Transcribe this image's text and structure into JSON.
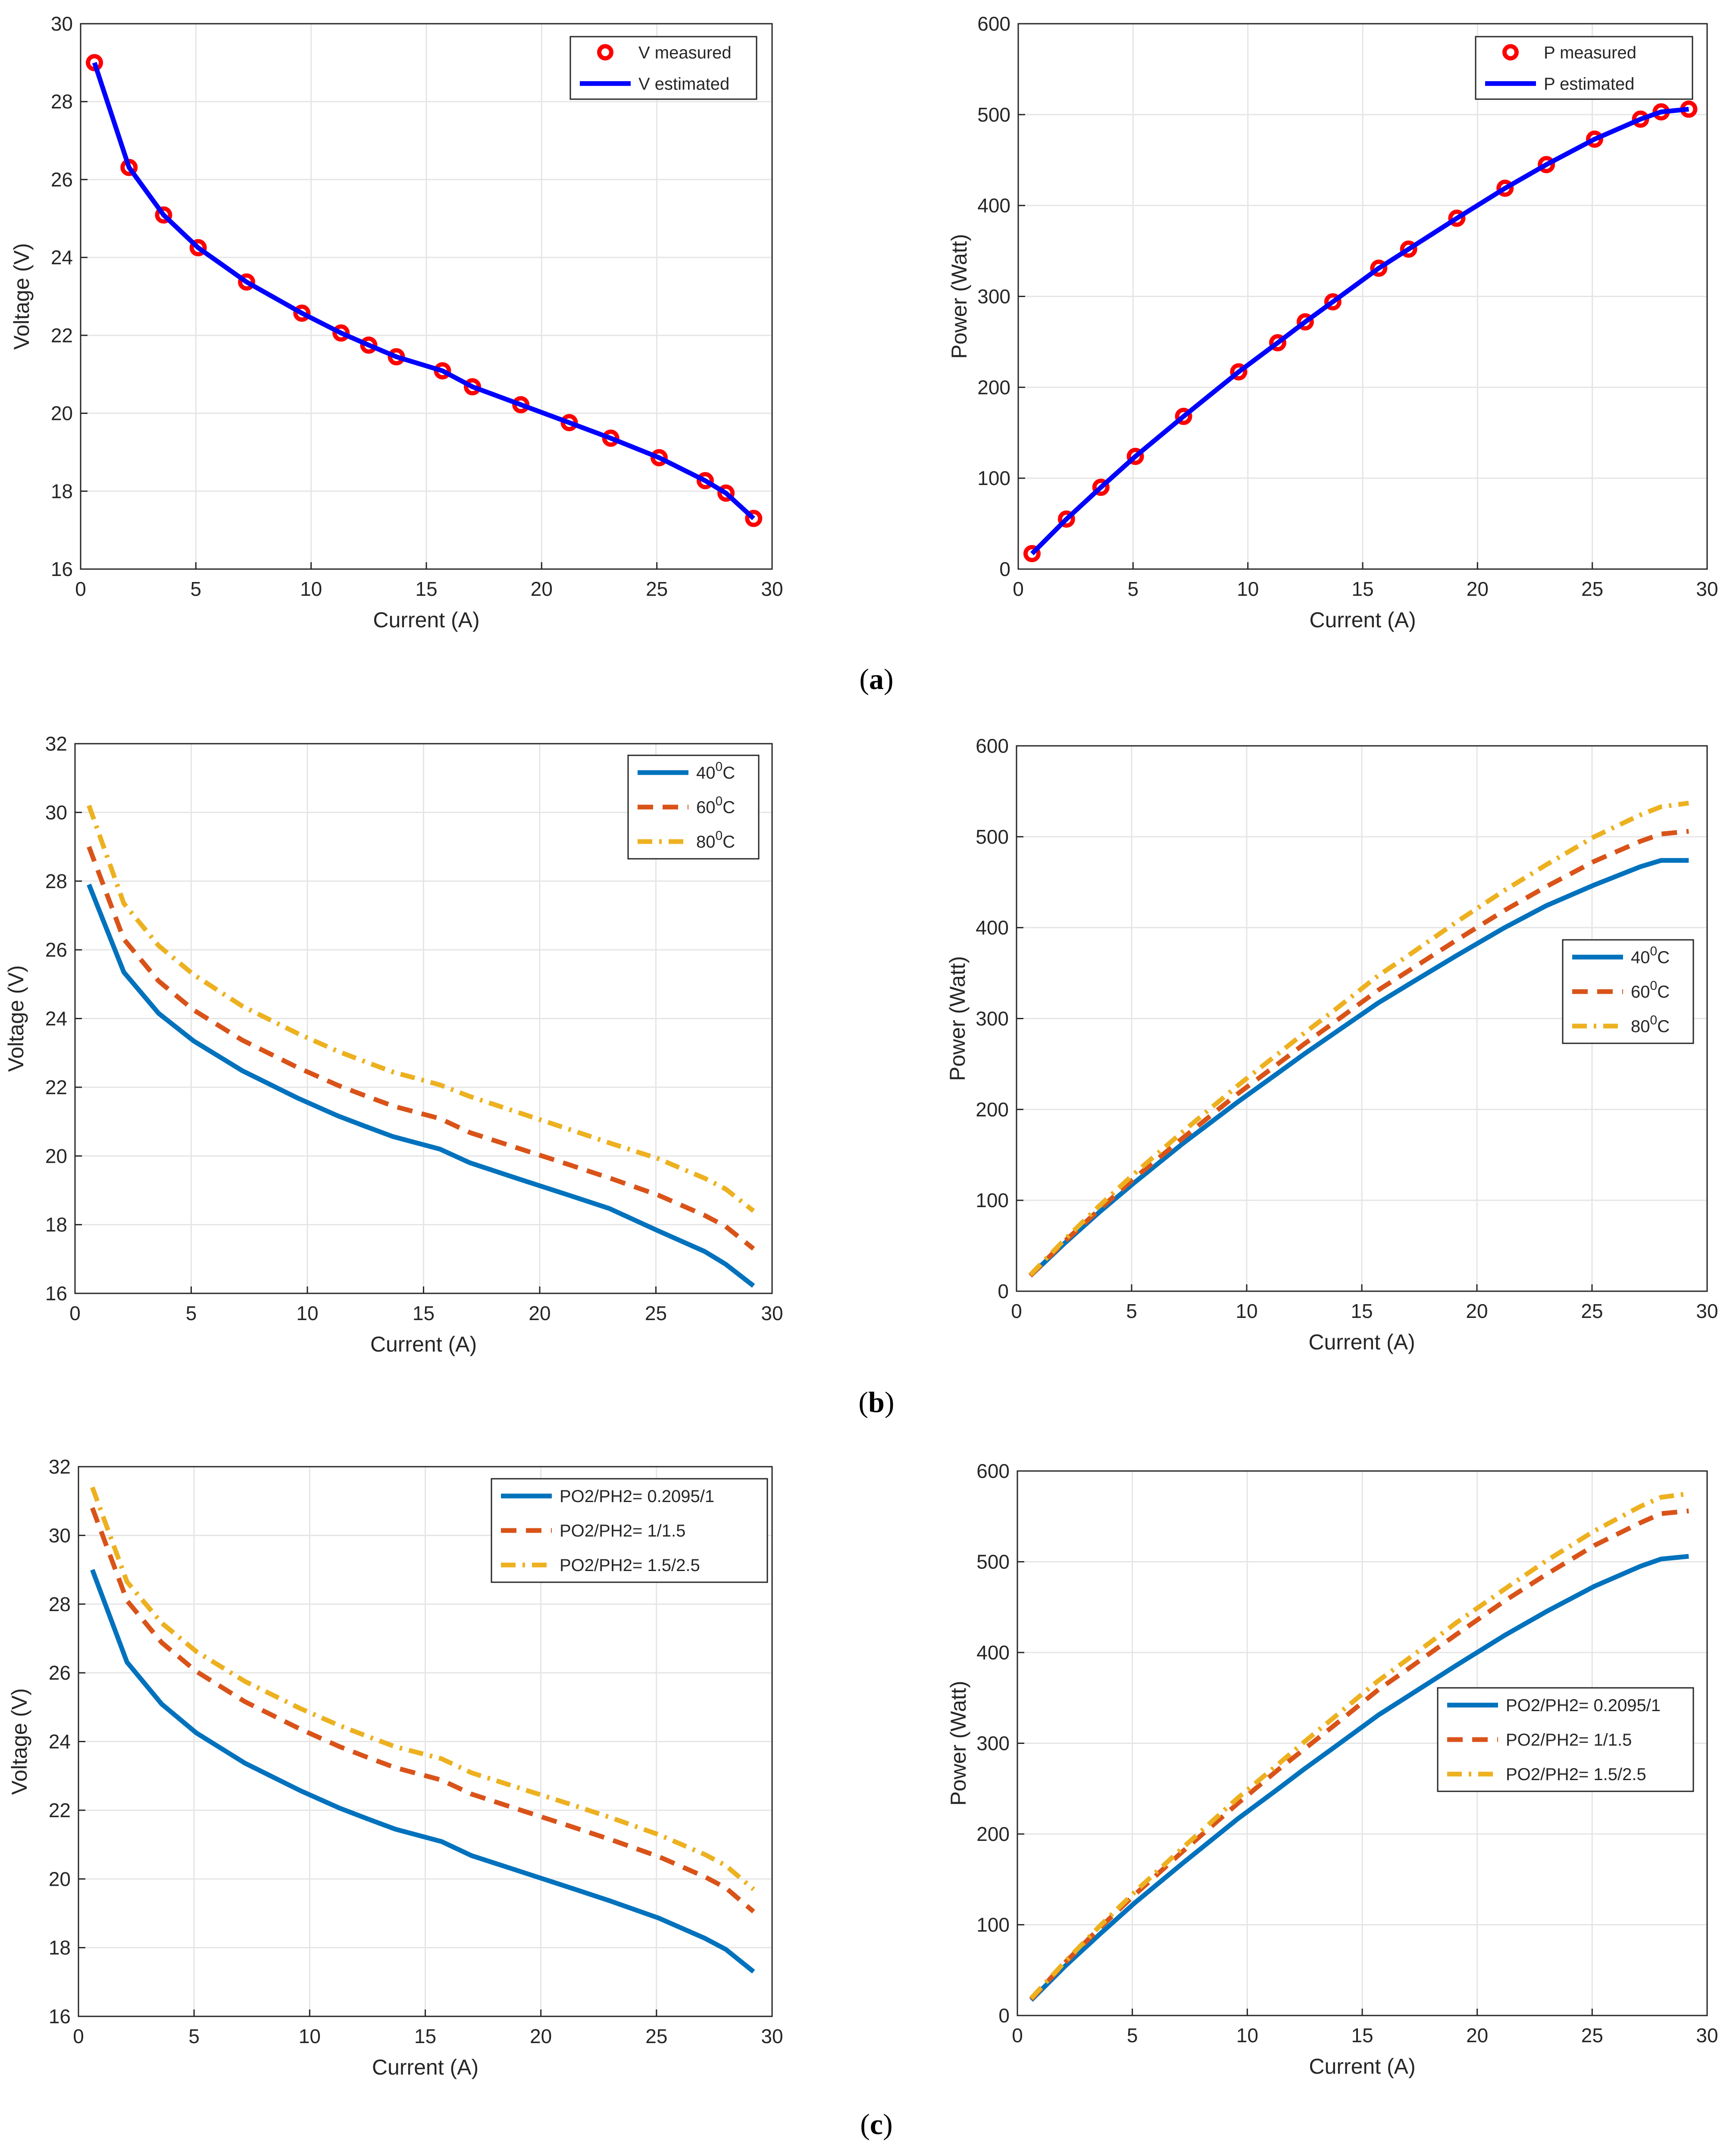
{
  "captions": [
    "a",
    "b",
    "c"
  ],
  "colors": {
    "measured_marker": "#ff0000",
    "estimated_line": "#0000ff",
    "series1": "#0072bd",
    "series2": "#d95319",
    "series3": "#edb120",
    "grid": "#e5e5e5",
    "axis": "#262626"
  },
  "chart_data": [
    {
      "id": "a-voltage",
      "type": "line",
      "xlabel": "Current (A)",
      "ylabel": "Voltage (V)",
      "xlim": [
        0,
        30
      ],
      "ylim": [
        16,
        30
      ],
      "xticks": [
        "0",
        "5",
        "10",
        "15",
        "20",
        "25",
        "30"
      ],
      "yticks": [
        "16",
        "18",
        "20",
        "22",
        "24",
        "26",
        "28",
        "30"
      ],
      "legend_position": "top-right",
      "grid": true,
      "x": [
        0.6,
        2.1,
        3.6,
        5.1,
        7.2,
        9.6,
        11.3,
        12.5,
        13.7,
        15.7,
        17.0,
        19.1,
        21.2,
        23.0,
        25.1,
        27.1,
        28.0,
        29.2
      ],
      "series": [
        {
          "name": "V measured",
          "style": "marker",
          "color": "#ff0000",
          "values": [
            29.0,
            26.31,
            25.09,
            24.25,
            23.37,
            22.57,
            22.06,
            21.75,
            21.45,
            21.09,
            20.68,
            20.22,
            19.76,
            19.36,
            18.86,
            18.27,
            17.95,
            17.3
          ]
        },
        {
          "name": "V estimated",
          "style": "solid",
          "color": "#0000ff",
          "values": [
            29.0,
            26.31,
            25.09,
            24.25,
            23.37,
            22.57,
            22.06,
            21.75,
            21.45,
            21.09,
            20.68,
            20.22,
            19.76,
            19.36,
            18.86,
            18.27,
            17.95,
            17.3
          ]
        }
      ]
    },
    {
      "id": "a-power",
      "type": "line",
      "xlabel": "Current (A)",
      "ylabel": "Power (Watt)",
      "xlim": [
        0,
        30
      ],
      "ylim": [
        0,
        600
      ],
      "xticks": [
        "0",
        "5",
        "10",
        "15",
        "20",
        "25",
        "30"
      ],
      "yticks": [
        "0",
        "100",
        "200",
        "300",
        "400",
        "500",
        "600"
      ],
      "legend_position": "top-right",
      "grid": true,
      "x": [
        0.6,
        2.1,
        3.6,
        5.1,
        7.2,
        9.6,
        11.3,
        12.5,
        13.7,
        15.7,
        17.0,
        19.1,
        21.2,
        23.0,
        25.1,
        27.1,
        28.0,
        29.2
      ],
      "series": [
        {
          "name": "P measured",
          "style": "marker",
          "color": "#ff0000",
          "values": [
            17,
            55,
            90,
            124,
            168,
            217,
            249,
            272,
            294,
            331,
            352,
            386,
            419,
            445,
            473,
            495,
            503,
            506
          ]
        },
        {
          "name": "P estimated",
          "style": "solid",
          "color": "#0000ff",
          "values": [
            17,
            55,
            90,
            124,
            168,
            217,
            249,
            272,
            294,
            331,
            352,
            386,
            419,
            445,
            473,
            495,
            503,
            506
          ]
        }
      ]
    },
    {
      "id": "b-voltage",
      "type": "line",
      "xlabel": "Current (A)",
      "ylabel": "Voltage (V)",
      "xlim": [
        0,
        30
      ],
      "ylim": [
        16,
        32
      ],
      "xticks": [
        "0",
        "5",
        "10",
        "15",
        "20",
        "25",
        "30"
      ],
      "yticks": [
        "16",
        "18",
        "20",
        "22",
        "24",
        "26",
        "28",
        "30",
        "32"
      ],
      "legend_position": "top-right",
      "grid": true,
      "x": [
        0.6,
        2.1,
        3.6,
        5.1,
        7.2,
        9.6,
        11.3,
        12.5,
        13.7,
        15.7,
        17.0,
        19.1,
        21.2,
        23.0,
        25.1,
        27.1,
        28.0,
        29.2
      ],
      "series": [
        {
          "name": "40",
          "sup": "0",
          "unit": "C",
          "style": "solid",
          "color": "#0072bd",
          "values": [
            27.9,
            25.35,
            24.15,
            23.35,
            22.48,
            21.68,
            21.17,
            20.86,
            20.56,
            20.2,
            19.8,
            19.33,
            18.87,
            18.47,
            17.82,
            17.22,
            16.85,
            16.22
          ]
        },
        {
          "name": "60",
          "sup": "0",
          "unit": "C",
          "style": "dashed",
          "color": "#d95319",
          "values": [
            29.0,
            26.31,
            25.09,
            24.25,
            23.37,
            22.57,
            22.06,
            21.75,
            21.45,
            21.09,
            20.68,
            20.22,
            19.76,
            19.36,
            18.86,
            18.27,
            17.95,
            17.3
          ]
        },
        {
          "name": "80",
          "sup": "0",
          "unit": "C",
          "style": "dashdot",
          "color": "#edb120",
          "values": [
            30.2,
            27.35,
            26.12,
            25.28,
            24.36,
            23.56,
            23.05,
            22.74,
            22.44,
            22.07,
            21.73,
            21.26,
            20.79,
            20.38,
            19.92,
            19.35,
            19.04,
            18.4
          ]
        }
      ]
    },
    {
      "id": "b-power",
      "type": "line",
      "xlabel": "Current (A)",
      "ylabel": "Power (Watt)",
      "xlim": [
        0,
        30
      ],
      "ylim": [
        0,
        600
      ],
      "xticks": [
        "0",
        "5",
        "10",
        "15",
        "20",
        "25",
        "30"
      ],
      "yticks": [
        "0",
        "100",
        "200",
        "300",
        "400",
        "500",
        "600"
      ],
      "legend_position": "middle-right",
      "grid": true,
      "x": [
        0.6,
        2.1,
        3.6,
        5.1,
        7.2,
        9.6,
        11.3,
        12.5,
        13.7,
        15.7,
        17.0,
        19.1,
        21.2,
        23.0,
        25.1,
        27.1,
        28.0,
        29.2
      ],
      "series": [
        {
          "name": "40",
          "sup": "0",
          "unit": "C",
          "style": "solid",
          "color": "#0072bd",
          "values": [
            17,
            53,
            87,
            119,
            162,
            208,
            239,
            261,
            282,
            317,
            337,
            369,
            400,
            424,
            447,
            467,
            474,
            474
          ]
        },
        {
          "name": "60",
          "sup": "0",
          "unit": "C",
          "style": "dashed",
          "color": "#d95319",
          "values": [
            17,
            55,
            90,
            124,
            168,
            217,
            249,
            272,
            294,
            331,
            352,
            386,
            419,
            445,
            473,
            495,
            503,
            506
          ]
        },
        {
          "name": "80",
          "sup": "0",
          "unit": "C",
          "style": "dashdot",
          "color": "#edb120",
          "values": [
            18,
            57,
            94,
            129,
            175,
            226,
            260,
            284,
            307,
            347,
            369,
            406,
            441,
            469,
            500,
            524,
            533,
            537
          ]
        }
      ]
    },
    {
      "id": "c-voltage",
      "type": "line",
      "xlabel": "Current (A)",
      "ylabel": "Voltage (V)",
      "xlim": [
        0,
        30
      ],
      "ylim": [
        16,
        32
      ],
      "xticks": [
        "0",
        "5",
        "10",
        "15",
        "20",
        "25",
        "30"
      ],
      "yticks": [
        "16",
        "18",
        "20",
        "22",
        "24",
        "26",
        "28",
        "30",
        "32"
      ],
      "legend_position": "top-right",
      "grid": true,
      "x": [
        0.6,
        2.1,
        3.6,
        5.1,
        7.2,
        9.6,
        11.3,
        12.5,
        13.7,
        15.7,
        17.0,
        19.1,
        21.2,
        23.0,
        25.1,
        27.1,
        28.0,
        29.2
      ],
      "series": [
        {
          "name": "PO2/PH2= 0.2095/1",
          "style": "solid",
          "color": "#0072bd",
          "values": [
            29.0,
            26.31,
            25.09,
            24.25,
            23.37,
            22.57,
            22.06,
            21.75,
            21.45,
            21.09,
            20.68,
            20.22,
            19.76,
            19.36,
            18.86,
            18.27,
            17.95,
            17.3
          ]
        },
        {
          "name": "PO2/PH2= 1/1.5",
          "style": "dashed",
          "color": "#d95319",
          "values": [
            30.8,
            28.1,
            26.88,
            26.04,
            25.16,
            24.36,
            23.85,
            23.54,
            23.24,
            22.88,
            22.47,
            22.01,
            21.55,
            21.15,
            20.65,
            20.06,
            19.74,
            19.05
          ]
        },
        {
          "name": "PO2/PH2= 1.5/2.5",
          "style": "dashdot",
          "color": "#edb120",
          "values": [
            31.4,
            28.65,
            27.45,
            26.62,
            25.75,
            24.96,
            24.46,
            24.15,
            23.85,
            23.5,
            23.09,
            22.64,
            22.19,
            21.79,
            21.29,
            20.71,
            20.39,
            19.7
          ]
        }
      ]
    },
    {
      "id": "c-power",
      "type": "line",
      "xlabel": "Current (A)",
      "ylabel": "Power (Watt)",
      "xlim": [
        0,
        30
      ],
      "ylim": [
        0,
        600
      ],
      "xticks": [
        "0",
        "5",
        "10",
        "15",
        "20",
        "25",
        "30"
      ],
      "yticks": [
        "0",
        "100",
        "200",
        "300",
        "400",
        "500",
        "600"
      ],
      "legend_position": "middle-right",
      "grid": true,
      "x": [
        0.6,
        2.1,
        3.6,
        5.1,
        7.2,
        9.6,
        11.3,
        12.5,
        13.7,
        15.7,
        17.0,
        19.1,
        21.2,
        23.0,
        25.1,
        27.1,
        28.0,
        29.2
      ],
      "series": [
        {
          "name": "PO2/PH2= 0.2095/1",
          "style": "solid",
          "color": "#0072bd",
          "values": [
            17,
            55,
            90,
            124,
            168,
            217,
            249,
            272,
            294,
            331,
            352,
            386,
            419,
            445,
            473,
            495,
            503,
            506
          ]
        },
        {
          "name": "PO2/PH2= 1/1.5",
          "style": "dashed",
          "color": "#d95319",
          "values": [
            18,
            59,
            97,
            133,
            181,
            234,
            270,
            294,
            318,
            359,
            382,
            420,
            457,
            486,
            518,
            543,
            553,
            556
          ]
        },
        {
          "name": "PO2/PH2= 1.5/2.5",
          "style": "dashdot",
          "color": "#edb120",
          "values": [
            19,
            60,
            99,
            136,
            185,
            240,
            276,
            302,
            327,
            369,
            393,
            433,
            470,
            501,
            534,
            561,
            571,
            575
          ]
        }
      ]
    }
  ]
}
